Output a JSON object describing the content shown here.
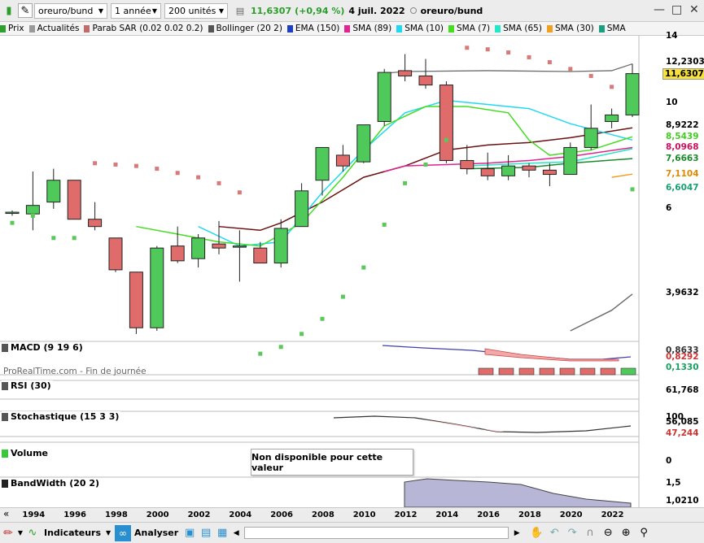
{
  "topbar": {
    "instrument": "oreuro/bund",
    "timeframe": "1 année",
    "units": "200 unités",
    "last_price": "11,6307",
    "change": "(+0,94 %)",
    "date": "4 juil. 2022",
    "title_instrument": "oreuro/bund"
  },
  "legend": [
    {
      "label": "Prix",
      "color": "#2ea02e"
    },
    {
      "label": "Actualités",
      "color": "#999999"
    },
    {
      "label": "Parab SAR (0.02 0.02 0.2)",
      "color": "#c26b6b"
    },
    {
      "label": "Bollinger (20 2)",
      "color": "#555555"
    },
    {
      "label": "EMA (150)",
      "color": "#1f3fbf"
    },
    {
      "label": "SMA (89)",
      "color": "#e0238f"
    },
    {
      "label": "SMA (10)",
      "color": "#22d8f0"
    },
    {
      "label": "SMA (7)",
      "color": "#44dd22"
    },
    {
      "label": "SMA (65)",
      "color": "#22e8c8"
    },
    {
      "label": "SMA (30)",
      "color": "#f0a020"
    },
    {
      "label": "SMA",
      "color": "#1aa080"
    }
  ],
  "price_axis": {
    "ticks": [
      "14",
      "12,2303",
      "11,6307",
      "10",
      "8,9222",
      "8,5439",
      "8,0968",
      "7,6663",
      "7,1104",
      "6,6047",
      "6",
      "3,9632"
    ]
  },
  "watermark": "ProRealTime.com - Fin de journée",
  "panels": {
    "macd": {
      "title": "MACD (9 19 6)",
      "values": [
        "0,8633",
        "0,8292",
        "0,1330"
      ]
    },
    "rsi": {
      "title": "RSI (30)",
      "values": [
        "61,768"
      ]
    },
    "stoch": {
      "title": "Stochastique (15 3 3)",
      "values": [
        "100",
        "56,085",
        "47,244"
      ]
    },
    "volume": {
      "title": "Volume",
      "values": [
        "0"
      ],
      "message": "Non disponible pour cette valeur"
    },
    "bandwidth": {
      "title": "BandWidth (20 2)",
      "values": [
        "1,5",
        "1,0210"
      ]
    }
  },
  "years": [
    "1994",
    "1996",
    "1998",
    "2000",
    "2002",
    "2004",
    "2006",
    "2008",
    "2010",
    "2012",
    "2014",
    "2016",
    "2018",
    "2020",
    "2022"
  ],
  "bottombar": {
    "indicators_label": "Indicateurs",
    "analyze_label": "Analyser"
  },
  "candles": [
    {
      "year": 1993,
      "o": 5.9,
      "h": 5.95,
      "l": 5.8,
      "c": 5.9
    },
    {
      "year": 1994,
      "o": 5.85,
      "h": 7.2,
      "l": 5.4,
      "c": 6.1
    },
    {
      "year": 1995,
      "o": 6.2,
      "h": 7.3,
      "l": 6.0,
      "c": 6.9
    },
    {
      "year": 1996,
      "o": 6.9,
      "h": 6.9,
      "l": 5.7,
      "c": 5.7
    },
    {
      "year": 1997,
      "o": 5.7,
      "h": 6.2,
      "l": 5.4,
      "c": 5.5
    },
    {
      "year": 1998,
      "o": 5.2,
      "h": 5.2,
      "l": 4.4,
      "c": 4.45
    },
    {
      "year": 1999,
      "o": 4.4,
      "h": 4.4,
      "l": 3.25,
      "c": 3.35
    },
    {
      "year": 2000,
      "o": 3.35,
      "h": 5.0,
      "l": 3.3,
      "c": 4.95
    },
    {
      "year": 2001,
      "o": 5.0,
      "h": 5.5,
      "l": 4.6,
      "c": 4.65
    },
    {
      "year": 2002,
      "o": 4.7,
      "h": 5.3,
      "l": 4.5,
      "c": 5.2
    },
    {
      "year": 2003,
      "o": 5.05,
      "h": 5.65,
      "l": 4.8,
      "c": 4.95
    },
    {
      "year": 2004,
      "o": 5.0,
      "h": 5.4,
      "l": 4.2,
      "c": 5.0
    },
    {
      "year": 2005,
      "o": 4.95,
      "h": 5.1,
      "l": 4.6,
      "c": 4.6
    },
    {
      "year": 2006,
      "o": 4.6,
      "h": 5.7,
      "l": 4.5,
      "c": 5.45
    },
    {
      "year": 2007,
      "o": 5.5,
      "h": 6.8,
      "l": 5.5,
      "c": 6.55
    },
    {
      "year": 2008,
      "o": 6.9,
      "h": 8.1,
      "l": 6.4,
      "c": 8.1
    },
    {
      "year": 2009,
      "o": 7.8,
      "h": 8.2,
      "l": 7.2,
      "c": 7.4
    },
    {
      "year": 2010,
      "o": 7.55,
      "h": 9.0,
      "l": 7.5,
      "c": 9.05
    },
    {
      "year": 2011,
      "o": 9.2,
      "h": 11.9,
      "l": 9.0,
      "c": 11.7
    },
    {
      "year": 2012,
      "o": 11.8,
      "h": 12.8,
      "l": 11.2,
      "c": 11.5
    },
    {
      "year": 2013,
      "o": 11.5,
      "h": 12.5,
      "l": 10.8,
      "c": 11.0
    },
    {
      "year": 2014,
      "o": 11.0,
      "h": 11.2,
      "l": 7.5,
      "c": 7.6
    },
    {
      "year": 2015,
      "o": 7.6,
      "h": 8.2,
      "l": 7.1,
      "c": 7.3
    },
    {
      "year": 2016,
      "o": 7.3,
      "h": 7.9,
      "l": 6.9,
      "c": 7.05
    },
    {
      "year": 2017,
      "o": 7.05,
      "h": 7.8,
      "l": 6.9,
      "c": 7.4
    },
    {
      "year": 2018,
      "o": 7.4,
      "h": 7.5,
      "l": 7.0,
      "c": 7.25
    },
    {
      "year": 2019,
      "o": 7.25,
      "h": 7.5,
      "l": 6.7,
      "c": 7.1
    },
    {
      "year": 2020,
      "o": 7.1,
      "h": 8.3,
      "l": 7.1,
      "c": 8.1
    },
    {
      "year": 2021,
      "o": 8.1,
      "h": 10.0,
      "l": 8.0,
      "c": 8.9
    },
    {
      "year": 2022,
      "o": 9.2,
      "h": 9.8,
      "l": 8.9,
      "c": 9.5
    },
    {
      "year": 2023,
      "o": 9.5,
      "h": 12.2,
      "l": 9.4,
      "c": 11.63
    }
  ],
  "sar": [
    {
      "year": 1993,
      "v": 5.6
    },
    {
      "year": 1994,
      "v": 5.8
    },
    {
      "year": 1995,
      "v": 5.2
    },
    {
      "year": 1996,
      "v": 5.2
    },
    {
      "year": 1997,
      "v": 7.5
    },
    {
      "year": 1998,
      "v": 7.45
    },
    {
      "year": 1999,
      "v": 7.4
    },
    {
      "year": 2000,
      "v": 7.3
    },
    {
      "year": 2001,
      "v": 7.15
    },
    {
      "year": 2002,
      "v": 7.0
    },
    {
      "year": 2003,
      "v": 6.8
    },
    {
      "year": 2004,
      "v": 6.5
    },
    {
      "year": 2005,
      "v": 2.95
    },
    {
      "year": 2006,
      "v": 3.05
    },
    {
      "year": 2007,
      "v": 3.25
    },
    {
      "year": 2008,
      "v": 3.5
    },
    {
      "year": 2009,
      "v": 3.9
    },
    {
      "year": 2010,
      "v": 4.5
    },
    {
      "year": 2011,
      "v": 5.55
    },
    {
      "year": 2012,
      "v": 6.8
    },
    {
      "year": 2013,
      "v": 7.45
    },
    {
      "year": 2014,
      "v": 8.4
    },
    {
      "year": 2015,
      "v": 13.2
    },
    {
      "year": 2016,
      "v": 13.1
    },
    {
      "year": 2017,
      "v": 12.9
    },
    {
      "year": 2018,
      "v": 12.6
    },
    {
      "year": 2019,
      "v": 12.3
    },
    {
      "year": 2020,
      "v": 11.9
    },
    {
      "year": 2021,
      "v": 11.5
    },
    {
      "year": 2022,
      "v": 10.9
    },
    {
      "year": 2023,
      "v": 6.6
    }
  ]
}
